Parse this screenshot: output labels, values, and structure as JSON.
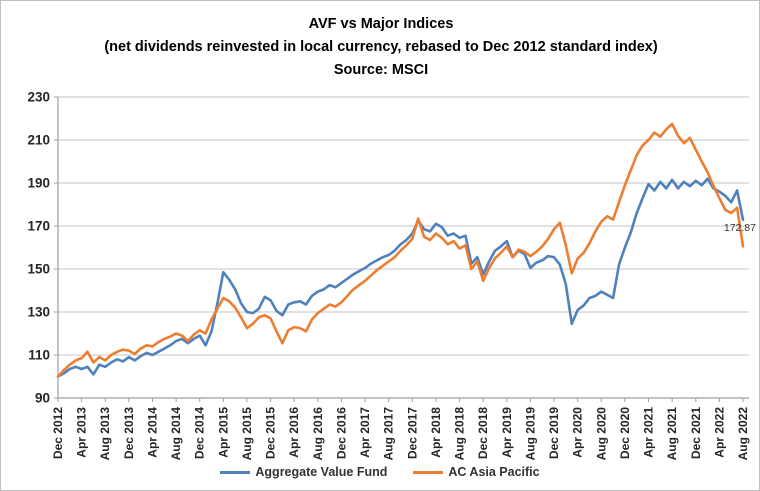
{
  "chart_data": {
    "type": "line",
    "title": "AVF vs Major  Indices",
    "subtitle": "(net dividends reinvested in local currency, rebased to Dec 2012 standard index)",
    "source_line": "Source: MSCI",
    "x_interval": "monthly",
    "x_start": "Dec 2012",
    "x_end": "Aug 2022",
    "x_tick_labels": [
      "Dec 2012",
      "Apr 2013",
      "Aug 2013",
      "Dec 2013",
      "Apr 2014",
      "Aug 2014",
      "Dec 2014",
      "Apr 2015",
      "Aug 2015",
      "Dec 2015",
      "Apr 2016",
      "Aug 2016",
      "Dec 2016",
      "Apr 2017",
      "Aug 2017",
      "Dec 2017",
      "Apr 2018",
      "Aug 2018",
      "Dec 2018",
      "Apr 2019",
      "Aug 2019",
      "Dec 2019",
      "Apr 2020",
      "Aug 2020",
      "Dec 2020",
      "Apr 2021",
      "Aug 2021",
      "Dec 2021",
      "Apr 2022",
      "Aug 2022"
    ],
    "x_tick_every_n_points": 4,
    "y_ticks": [
      90,
      110,
      130,
      150,
      170,
      190,
      210,
      230
    ],
    "ylim": [
      90,
      230
    ],
    "grid": "horizontal",
    "legend_position": "bottom",
    "series": [
      {
        "name": "Aggregate Value Fund",
        "color": "#4F81BD",
        "values": [
          100,
          101.5,
          103.5,
          104.5,
          103.5,
          104.5,
          101,
          105.5,
          104.5,
          106.5,
          108,
          107,
          109,
          107.5,
          109.5,
          111,
          110,
          111.5,
          113,
          114.5,
          116.5,
          117.5,
          115.5,
          117.5,
          119,
          114.5,
          121,
          134,
          148.5,
          145,
          140.5,
          134,
          130,
          129.5,
          131.5,
          137,
          135.5,
          130.5,
          128.5,
          133.5,
          134.5,
          135,
          133.5,
          137.5,
          139.5,
          140.5,
          142.5,
          141.5,
          143.5,
          145.5,
          147.5,
          149,
          150.5,
          152.5,
          154,
          155.5,
          156.5,
          158.5,
          161.5,
          163.5,
          166.5,
          172.5,
          168.5,
          167.5,
          171,
          169.5,
          165.5,
          166.5,
          164.5,
          165.5,
          152.5,
          155.5,
          147.5,
          153.5,
          158.5,
          160.5,
          163,
          155.5,
          158.5,
          157,
          150.5,
          153,
          154,
          156,
          155.5,
          152,
          143,
          124.5,
          131,
          133,
          136.5,
          137.5,
          139.5,
          138,
          136.5,
          152,
          160,
          167,
          176,
          183,
          189.5,
          186.5,
          190.5,
          187.5,
          191.5,
          187.5,
          190.5,
          188.5,
          191,
          189,
          192,
          187.5,
          186,
          184,
          181,
          186.5,
          172.87
        ]
      },
      {
        "name": "AC Asia Pacific",
        "color": "#ED7D31",
        "values": [
          100,
          103,
          105.5,
          107.5,
          108.5,
          111.5,
          106.5,
          109,
          107.5,
          110,
          111.5,
          112.5,
          112,
          110.5,
          113,
          114.5,
          114,
          116,
          117.5,
          118.5,
          120,
          119,
          116.5,
          119.5,
          121.5,
          120,
          126.5,
          131.5,
          136.5,
          135,
          132,
          127.5,
          122.5,
          124.5,
          127.5,
          128.5,
          127,
          121,
          115.5,
          121.5,
          123,
          122.5,
          121,
          126.5,
          129.5,
          131.5,
          133.5,
          132.5,
          134.5,
          137.5,
          140.5,
          142.5,
          144.5,
          147,
          149.5,
          151.5,
          153.5,
          155.5,
          158.5,
          161,
          164,
          173.5,
          165,
          163.5,
          166.5,
          164.5,
          161.5,
          163,
          159.5,
          161,
          150,
          153.5,
          144.5,
          150.5,
          155,
          157.5,
          160.5,
          155.5,
          159,
          158,
          156,
          158,
          160.5,
          164,
          168.5,
          171.5,
          161,
          148,
          155,
          157.5,
          162,
          167.5,
          172,
          174.5,
          173,
          181,
          189,
          196,
          203,
          207.5,
          210,
          213.5,
          211.5,
          215,
          217.5,
          212,
          208.5,
          211,
          205.5,
          200,
          195,
          188.5,
          183,
          177.5,
          176,
          178.5,
          160.5
        ]
      }
    ],
    "end_label": {
      "series": "Aggregate Value Fund",
      "value": 172.87,
      "text": "172.87"
    }
  },
  "legend": {
    "items": [
      {
        "label": "Aggregate Value Fund"
      },
      {
        "label": "AC Asia Pacific"
      }
    ]
  },
  "colors": {
    "background": "#ffffff",
    "gridline": "#c6c6c6",
    "axis": "#9e9e9e",
    "series_blue": "#4F81BD",
    "series_orange": "#ED7D31",
    "text": "#262626"
  }
}
